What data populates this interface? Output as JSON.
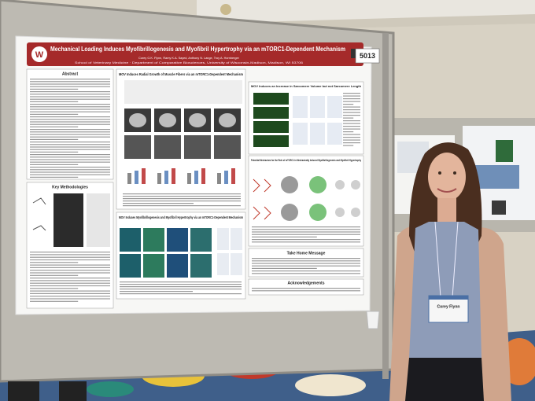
{
  "poster": {
    "number": "5013",
    "title": "Mechanical Loading Induces Myofibrillogenesis and Myofibril Hypertrophy via an mTORC1-Dependent Mechanism",
    "authors": "Corey G.K. Flynn, Ramy K.A. Sayed, Anthony N. Lange, Troy A. Hornberger",
    "affiliation": "School of Veterinary Medicine · Department of Comparative Biosciences, University of Wisconsin-Madison, Madison, WI 53706",
    "sections": {
      "abstract": "Abstract",
      "methods": "Key Methodologies",
      "radial": "MOV Induces Radial Growth of Muscle Fibers via an mTORC1-Dependent Mechanism",
      "sarcomere": "MOV Induces an Increase in Sarcomere Volume but not Sarcomere Length",
      "myofib": "MOV Induces Myofibrillogenesis and Myofibril Hypertrophy via an mTORC1-Dependent Mechanism",
      "mechanism": "Potential Mechanism for the Role of mTORC1 in Mechanically Induced Myofibrillogenesis and Myofibril Hypertrophy",
      "takehome": "Take Home Message",
      "ack": "Acknowledgements"
    }
  },
  "badge": {
    "name": "Corey Flynn"
  }
}
